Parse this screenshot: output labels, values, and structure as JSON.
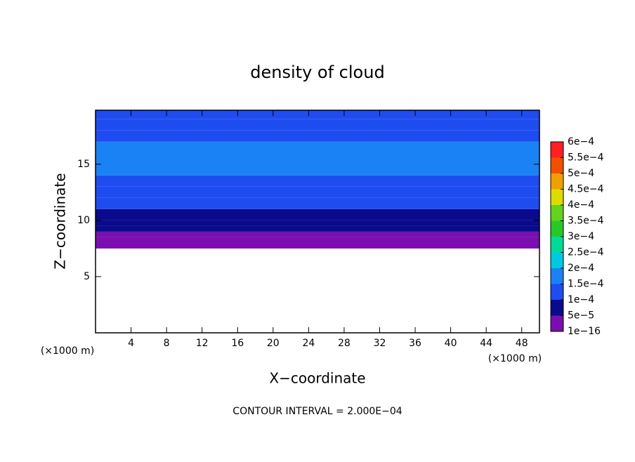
{
  "chart_data": {
    "type": "contour",
    "title": "density of cloud",
    "x_label": "X−coordinate",
    "y_label": "Z−coordinate",
    "x_unit": "(×1000 m)",
    "y_unit": "(×1000 m)",
    "footnote": "CONTOUR INTERVAL = 2.000E−04",
    "xlim": [
      0,
      50
    ],
    "ylim": [
      0,
      19.8
    ],
    "xticks": [
      4,
      8,
      12,
      16,
      20,
      24,
      28,
      32,
      36,
      40,
      44,
      48
    ],
    "yticks": [
      5,
      10,
      15
    ],
    "z": [
      7.5,
      8.5,
      9,
      9.5,
      10,
      11,
      12,
      13,
      14,
      17,
      18,
      19
    ],
    "values": [
      2e-05,
      4e-05,
      6e-05,
      8e-05,
      9e-05,
      0.00011,
      0.00012,
      0.00014,
      0.00016,
      0.00014,
      0.00012,
      0.00011
    ],
    "levels": [
      {
        "value": 1e-16,
        "label": "1e−16"
      },
      {
        "value": 5e-05,
        "label": "5e−5"
      },
      {
        "value": 0.0001,
        "label": "1e−4"
      },
      {
        "value": 0.00015,
        "label": "1.5e−4"
      },
      {
        "value": 0.0002,
        "label": "2e−4"
      },
      {
        "value": 0.00025,
        "label": "2.5e−4"
      },
      {
        "value": 0.0003,
        "label": "3e−4"
      },
      {
        "value": 0.00035,
        "label": "3.5e−4"
      },
      {
        "value": 0.0004,
        "label": "4e−4"
      },
      {
        "value": 0.00045,
        "label": "4.5e−4"
      },
      {
        "value": 0.0005,
        "label": "5e−4"
      },
      {
        "value": 0.00055,
        "label": "5.5e−4"
      },
      {
        "value": 0.0006,
        "label": "6e−4"
      }
    ],
    "level_colors": [
      "#7a0fb0",
      "#0a0a8c",
      "#1e4cf0",
      "#1a82f5",
      "#00c8e0",
      "#00dc96",
      "#28c828",
      "#64d21e",
      "#dcdc00",
      "#f0a000",
      "#f05000",
      "#ff2020"
    ]
  }
}
